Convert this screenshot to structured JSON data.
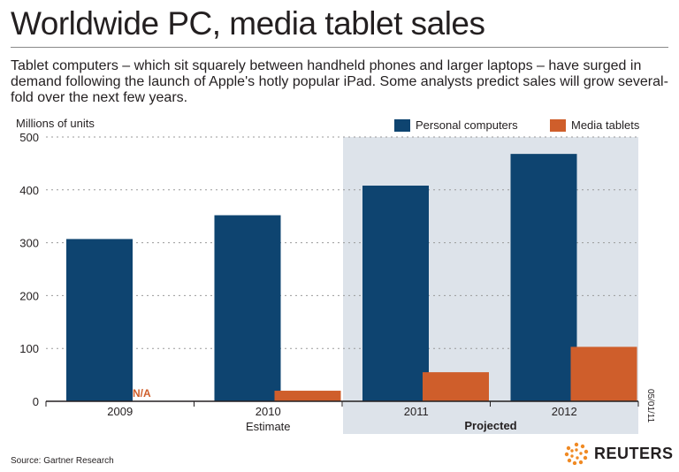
{
  "title": "Worldwide PC, media tablet sales",
  "subtitle": "Tablet computers – which sit squarely between handheld phones and larger laptops – have surged in demand following the launch of Apple's hotly popular iPad. Some analysts predict sales will grow several-fold over the next few years.",
  "source": "Source: Gartner Research",
  "date": "05/01/11",
  "brand": "REUTERS",
  "colors": {
    "pc": "#0e4470",
    "tablet": "#cf5e2b",
    "projected_bg": "#dde3ea",
    "na_text": "#cf5e2b"
  },
  "chart_data": {
    "type": "bar",
    "ylabel": "Millions of units",
    "ylim": [
      0,
      500
    ],
    "yticks": [
      0,
      100,
      200,
      300,
      400,
      500
    ],
    "categories": [
      "2009",
      "2010",
      "2011",
      "2012"
    ],
    "category_notes": [
      "",
      "Estimate",
      "",
      ""
    ],
    "projected_label": "Projected",
    "projected_categories": [
      "2011",
      "2012"
    ],
    "series": [
      {
        "name": "Personal computers",
        "values": [
          307,
          352,
          408,
          468
        ]
      },
      {
        "name": "Media tablets",
        "values": [
          null,
          20,
          55,
          103
        ]
      }
    ],
    "missing_label": "N/A",
    "grid": true
  }
}
